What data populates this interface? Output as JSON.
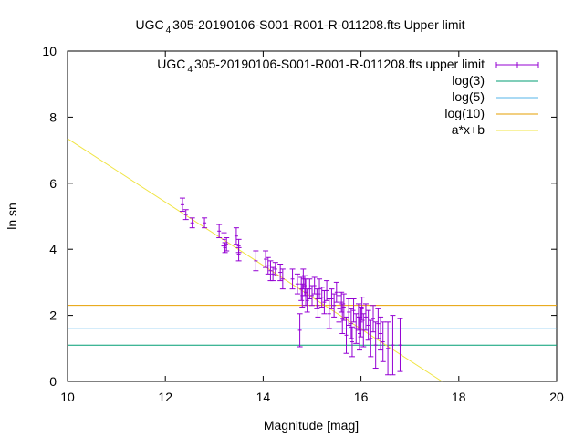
{
  "chart_data": {
    "type": "scatter",
    "title": {
      "pre": "UGC",
      "sub": "4",
      "post": "305-20190106-S001-R001-R-011208.fts Upper limit"
    },
    "xlabel": "Magnitude [mag]",
    "ylabel": "ln sn",
    "xlim": [
      10,
      20
    ],
    "ylim": [
      0,
      10
    ],
    "xticks": [
      "10",
      "12",
      "14",
      "16",
      "18",
      "20"
    ],
    "yticks": [
      "0",
      "2",
      "4",
      "6",
      "8",
      "10"
    ],
    "legend_position": "top-right",
    "legend": [
      {
        "pre": "UGC",
        "sub": "4",
        "post": "305-20190106-S001-R001-R-011208.fts upper limit",
        "kind": "errorbar",
        "color": "#9400d3"
      },
      {
        "label": "log(3)",
        "kind": "line",
        "color": "#009e73"
      },
      {
        "label": "log(5)",
        "kind": "line",
        "color": "#56b4e9"
      },
      {
        "label": "log(10)",
        "kind": "line",
        "color": "#e69f00"
      },
      {
        "label": "a*x+b",
        "kind": "line",
        "color": "#f0e442"
      }
    ],
    "hlines": [
      {
        "name": "log(3)",
        "y": 1.0986,
        "color": "#009e73"
      },
      {
        "name": "log(5)",
        "y": 1.6094,
        "color": "#56b4e9"
      },
      {
        "name": "log(10)",
        "y": 2.3026,
        "color": "#e69f00"
      }
    ],
    "fit": {
      "name": "a*x+b",
      "slope": -0.96,
      "intercept": 16.95,
      "color": "#f0e442"
    },
    "points": [
      [
        12.35,
        5.35,
        0.2
      ],
      [
        12.42,
        5.05,
        0.15
      ],
      [
        12.55,
        4.8,
        0.15
      ],
      [
        12.8,
        4.8,
        0.15
      ],
      [
        13.1,
        4.55,
        0.2
      ],
      [
        13.2,
        4.3,
        0.2
      ],
      [
        13.22,
        4.05,
        0.15
      ],
      [
        13.25,
        4.15,
        0.2
      ],
      [
        13.45,
        4.4,
        0.25
      ],
      [
        13.5,
        4.1,
        0.2
      ],
      [
        13.5,
        3.85,
        0.2
      ],
      [
        13.85,
        3.65,
        0.3
      ],
      [
        14.05,
        3.7,
        0.25
      ],
      [
        14.1,
        3.5,
        0.25
      ],
      [
        14.15,
        3.35,
        0.3
      ],
      [
        14.2,
        3.25,
        0.2
      ],
      [
        14.25,
        3.4,
        0.2
      ],
      [
        14.35,
        3.3,
        0.25
      ],
      [
        14.4,
        3.1,
        0.3
      ],
      [
        14.6,
        3.1,
        0.3
      ],
      [
        14.7,
        2.95,
        0.3
      ],
      [
        14.75,
        1.55,
        0.5
      ],
      [
        14.78,
        2.8,
        0.35
      ],
      [
        14.8,
        2.6,
        0.35
      ],
      [
        14.82,
        3.1,
        0.3
      ],
      [
        14.85,
        2.9,
        0.3
      ],
      [
        14.87,
        2.7,
        0.4
      ],
      [
        14.9,
        2.45,
        0.35
      ],
      [
        14.95,
        2.8,
        0.3
      ],
      [
        15.0,
        2.6,
        0.3
      ],
      [
        15.05,
        2.9,
        0.25
      ],
      [
        15.1,
        2.5,
        0.3
      ],
      [
        15.12,
        2.3,
        0.35
      ],
      [
        15.15,
        2.8,
        0.3
      ],
      [
        15.2,
        2.55,
        0.3
      ],
      [
        15.25,
        2.4,
        0.35
      ],
      [
        15.3,
        2.75,
        0.3
      ],
      [
        15.35,
        2.05,
        0.45
      ],
      [
        15.4,
        2.5,
        0.3
      ],
      [
        15.45,
        2.3,
        0.35
      ],
      [
        15.5,
        2.7,
        0.3
      ],
      [
        15.55,
        2.2,
        0.4
      ],
      [
        15.6,
        2.4,
        0.3
      ],
      [
        15.62,
        1.9,
        0.45
      ],
      [
        15.65,
        2.25,
        0.4
      ],
      [
        15.7,
        1.4,
        0.55
      ],
      [
        15.75,
        2.1,
        0.4
      ],
      [
        15.8,
        1.75,
        0.45
      ],
      [
        15.82,
        1.2,
        0.45
      ],
      [
        15.85,
        2.15,
        0.35
      ],
      [
        15.9,
        1.6,
        0.45
      ],
      [
        15.95,
        1.95,
        0.4
      ],
      [
        15.97,
        1.45,
        0.5
      ],
      [
        16.0,
        1.8,
        0.45
      ],
      [
        16.02,
        2.2,
        0.35
      ],
      [
        16.05,
        1.55,
        0.5
      ],
      [
        16.1,
        1.95,
        0.4
      ],
      [
        16.15,
        1.7,
        0.45
      ],
      [
        16.2,
        1.3,
        0.55
      ],
      [
        16.25,
        1.9,
        0.4
      ],
      [
        16.3,
        1.1,
        0.7
      ],
      [
        16.35,
        1.75,
        0.45
      ],
      [
        16.4,
        1.45,
        0.5
      ],
      [
        16.45,
        1.2,
        0.6
      ],
      [
        16.55,
        1.0,
        0.8
      ],
      [
        16.65,
        1.1,
        0.9
      ],
      [
        16.8,
        1.1,
        0.8
      ]
    ]
  }
}
